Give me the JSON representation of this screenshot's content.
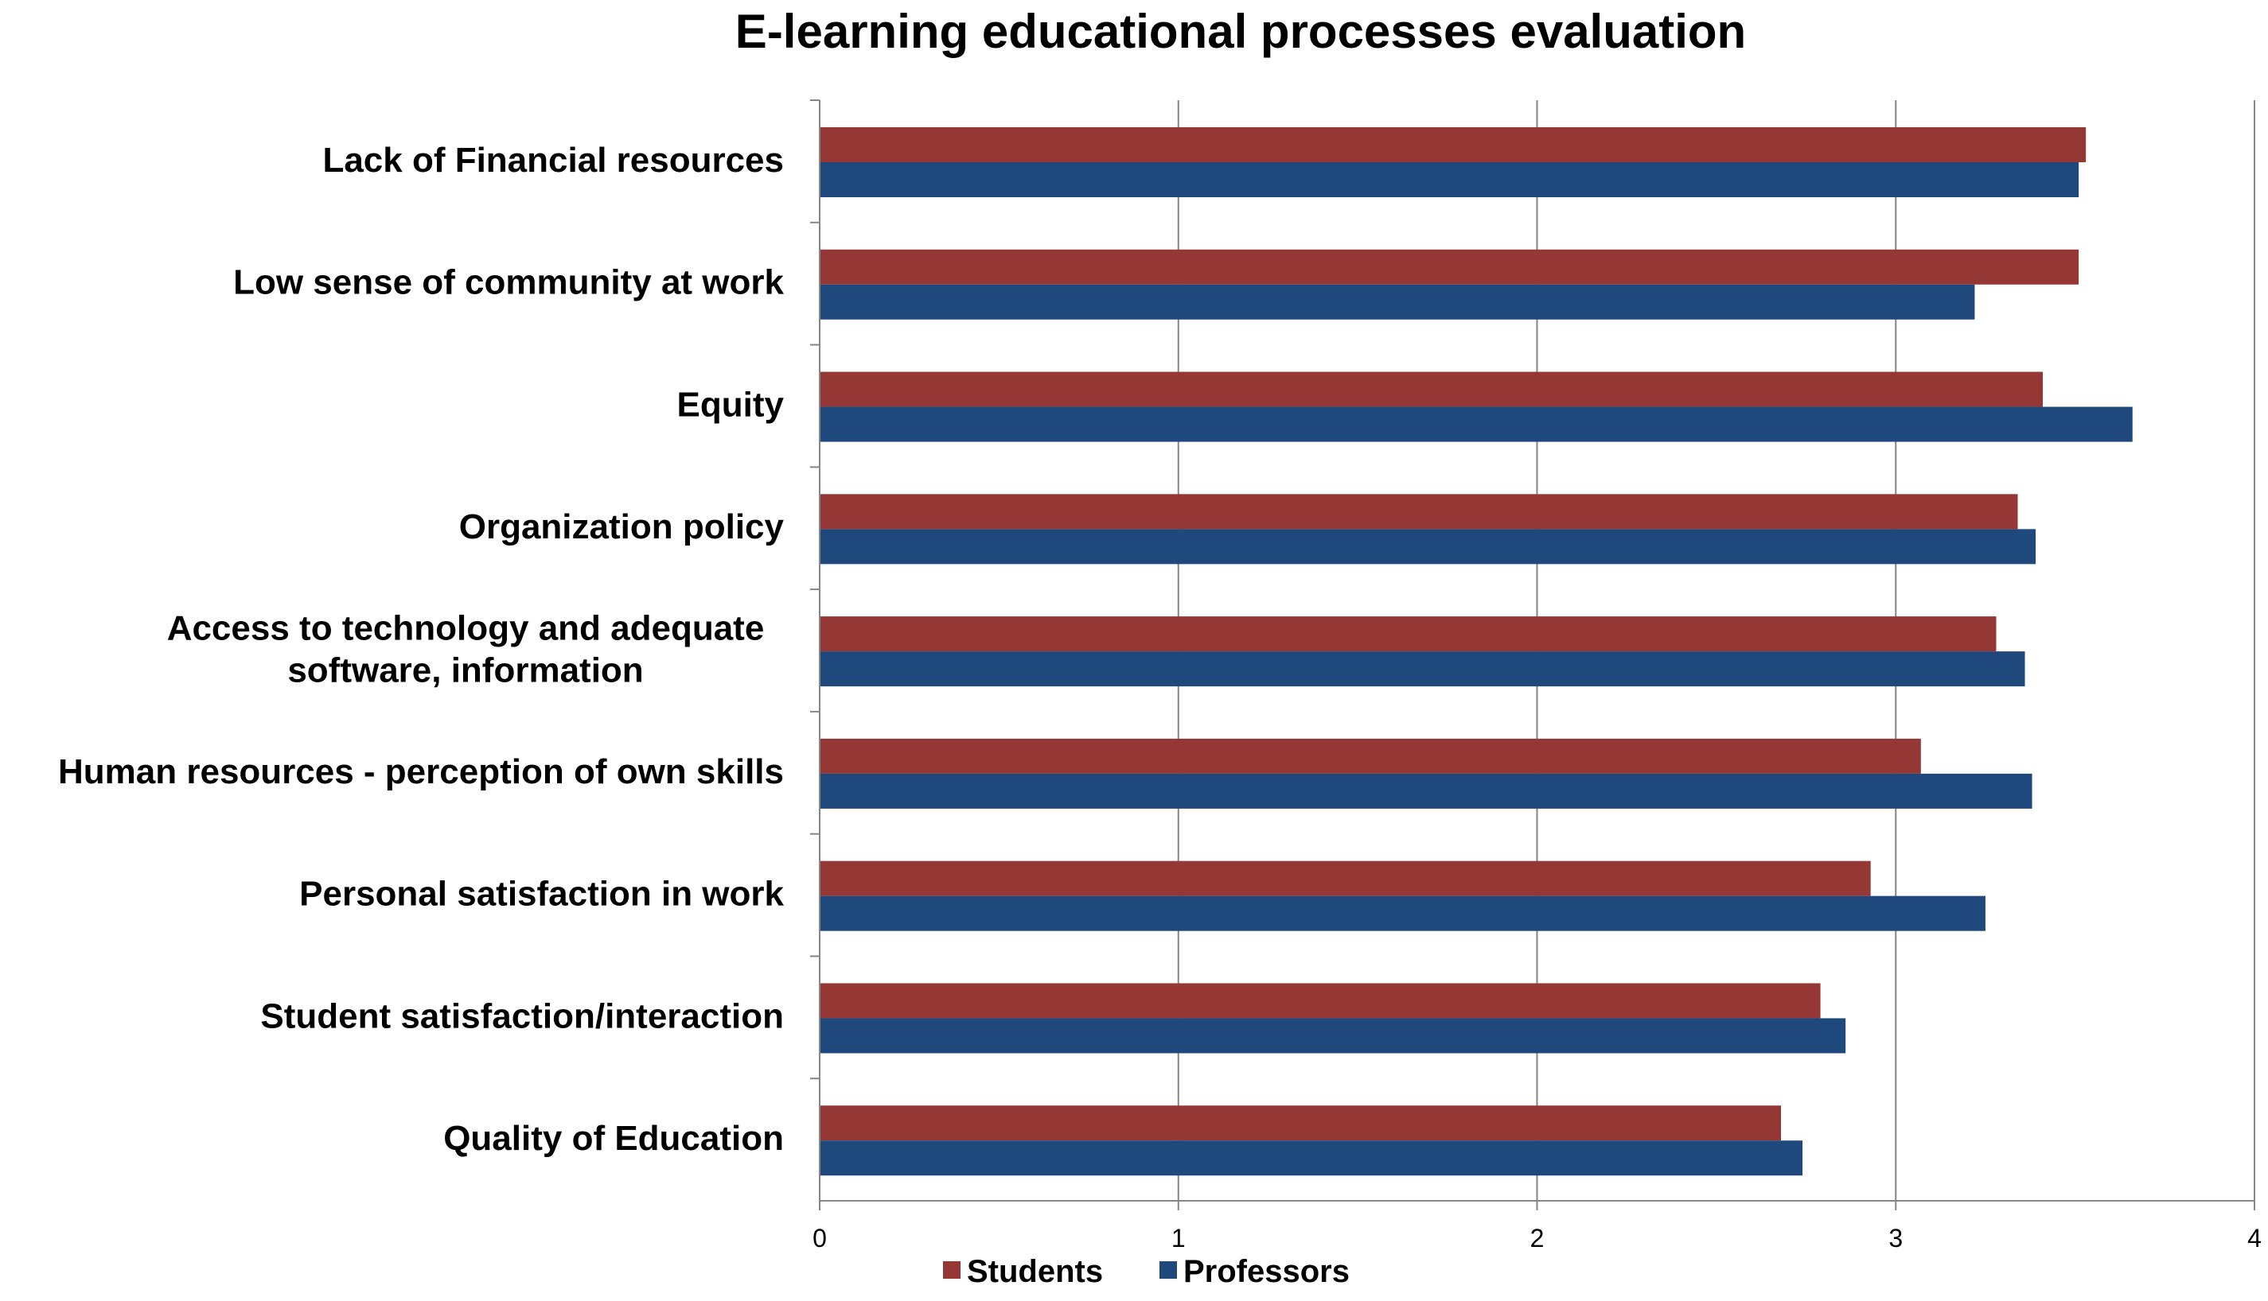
{
  "chart_data": {
    "type": "bar",
    "orientation": "horizontal",
    "title": "E-learning educational processes evaluation",
    "categories": [
      "Lack of Financial resources",
      "Low sense of community at work",
      "Equity",
      "Organization policy",
      "Access to technology and adequate software, information",
      "Human resources - perception of own skills",
      "Personal satisfaction in work",
      "Student satisfaction/interaction",
      "Quality of Education"
    ],
    "category_label_lines": [
      [
        "Lack of Financial resources"
      ],
      [
        "Low sense of community at work"
      ],
      [
        "Equity"
      ],
      [
        "Organization policy"
      ],
      [
        "Access to technology and adequate",
        "software, information"
      ],
      [
        "Human resources - perception of own skills"
      ],
      [
        "Personal satisfaction in work"
      ],
      [
        "Student satisfaction/interaction"
      ],
      [
        "Quality of Education"
      ]
    ],
    "series": [
      {
        "name": "Students",
        "color": "#953735",
        "values": [
          3.53,
          3.51,
          3.41,
          3.34,
          3.28,
          3.07,
          2.93,
          2.79,
          2.68
        ]
      },
      {
        "name": "Professors",
        "color": "#1F497D",
        "values": [
          3.51,
          3.22,
          3.66,
          3.39,
          3.36,
          3.38,
          3.25,
          2.86,
          2.74
        ]
      }
    ],
    "xlim": [
      0,
      4
    ],
    "xticks": [
      "0",
      "1",
      "2",
      "3",
      "4"
    ],
    "grid": true,
    "legend_position": "bottom-center"
  }
}
